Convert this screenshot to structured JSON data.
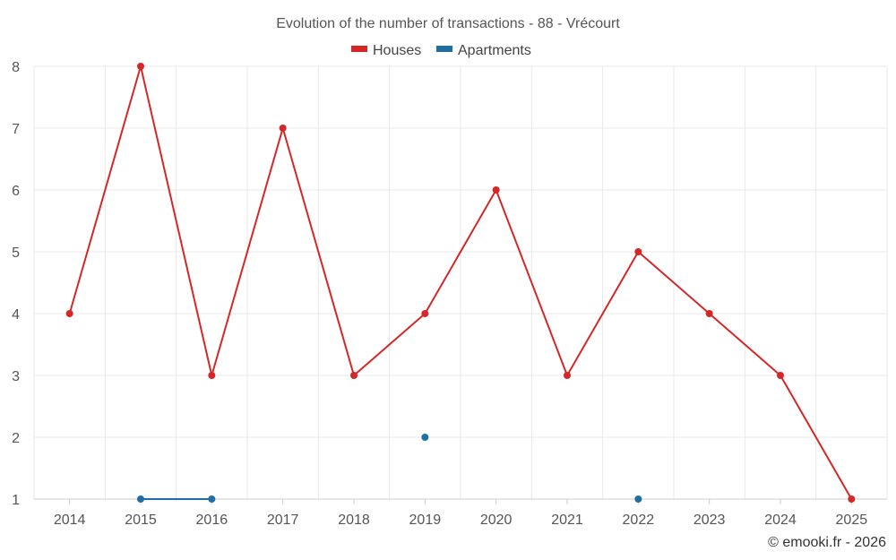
{
  "chart_data": {
    "type": "line",
    "title": "Evolution of the number of transactions - 88 - Vrécourt",
    "xlabel": "",
    "ylabel": "",
    "categories": [
      "2014",
      "2015",
      "2016",
      "2017",
      "2018",
      "2019",
      "2020",
      "2021",
      "2022",
      "2023",
      "2024",
      "2025"
    ],
    "ylim": [
      1,
      8
    ],
    "yticks": [
      1,
      2,
      3,
      4,
      5,
      6,
      7,
      8
    ],
    "grid": true,
    "legend_position": "top-center",
    "series": [
      {
        "name": "Houses",
        "color": "#d62728",
        "values": [
          4,
          8,
          3,
          7,
          3,
          4,
          6,
          3,
          5,
          4,
          3,
          1
        ]
      },
      {
        "name": "Apartments",
        "color": "#1f6fa5",
        "values": [
          null,
          1,
          1,
          null,
          null,
          2,
          null,
          null,
          1,
          null,
          null,
          null
        ]
      }
    ]
  },
  "credit": "© emooki.fr - 2026"
}
